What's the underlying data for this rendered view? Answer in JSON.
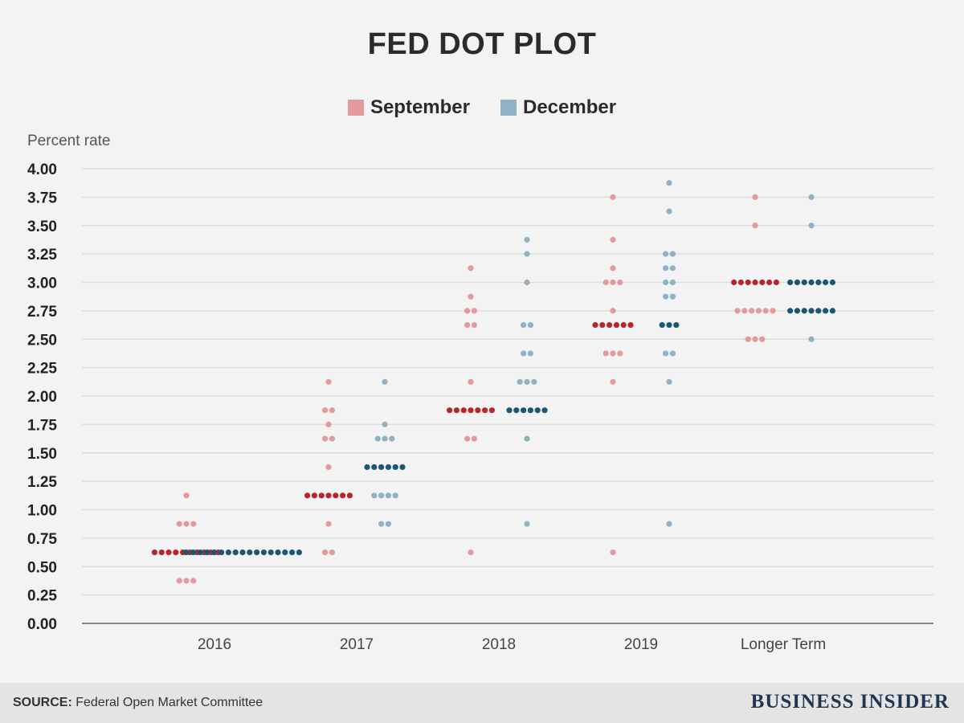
{
  "chart_data": {
    "type": "scatter",
    "subtype": "dot-plot",
    "title": "FED DOT PLOT",
    "ylabel": "Percent rate",
    "xlabel": "",
    "ylim": [
      0,
      4
    ],
    "yticks": [
      "0.00",
      "0.25",
      "0.50",
      "0.75",
      "1.00",
      "1.25",
      "1.50",
      "1.75",
      "2.00",
      "2.25",
      "2.50",
      "2.75",
      "3.00",
      "3.25",
      "3.50",
      "3.75",
      "4.00"
    ],
    "categories": [
      "2016",
      "2017",
      "2018",
      "2019",
      "Longer Term"
    ],
    "legend": [
      {
        "name": "September",
        "color": "#e29a9c"
      },
      {
        "name": "December",
        "color": "#8fb2c4"
      }
    ],
    "series": [
      {
        "name": "September",
        "color_light": "#e29a9c",
        "color_dark": "#b8262d",
        "groups": [
          {
            "category": "2016",
            "rates": [
              {
                "rate": 1.125,
                "count": 1
              },
              {
                "rate": 0.875,
                "count": 3
              },
              {
                "rate": 0.625,
                "count": 10
              },
              {
                "rate": 0.375,
                "count": 3
              }
            ]
          },
          {
            "category": "2017",
            "rates": [
              {
                "rate": 2.125,
                "count": 1
              },
              {
                "rate": 1.875,
                "count": 2
              },
              {
                "rate": 1.75,
                "count": 1
              },
              {
                "rate": 1.625,
                "count": 2
              },
              {
                "rate": 1.375,
                "count": 1
              },
              {
                "rate": 1.125,
                "count": 7
              },
              {
                "rate": 0.875,
                "count": 1
              },
              {
                "rate": 0.625,
                "count": 2
              }
            ]
          },
          {
            "category": "2018",
            "rates": [
              {
                "rate": 3.125,
                "count": 1
              },
              {
                "rate": 2.875,
                "count": 1
              },
              {
                "rate": 2.75,
                "count": 2
              },
              {
                "rate": 2.625,
                "count": 2
              },
              {
                "rate": 2.125,
                "count": 1
              },
              {
                "rate": 1.875,
                "count": 7
              },
              {
                "rate": 1.625,
                "count": 2
              },
              {
                "rate": 0.625,
                "count": 1
              }
            ]
          },
          {
            "category": "2019",
            "rates": [
              {
                "rate": 3.75,
                "count": 1
              },
              {
                "rate": 3.375,
                "count": 1
              },
              {
                "rate": 3.125,
                "count": 1
              },
              {
                "rate": 3.0,
                "count": 3
              },
              {
                "rate": 2.75,
                "count": 1
              },
              {
                "rate": 2.625,
                "count": 6
              },
              {
                "rate": 2.375,
                "count": 3
              },
              {
                "rate": 2.125,
                "count": 1
              },
              {
                "rate": 0.625,
                "count": 1
              }
            ]
          },
          {
            "category": "Longer Term",
            "rates": [
              {
                "rate": 3.75,
                "count": 1
              },
              {
                "rate": 3.5,
                "count": 1
              },
              {
                "rate": 3.0,
                "count": 7
              },
              {
                "rate": 2.75,
                "count": 6
              },
              {
                "rate": 2.5,
                "count": 3
              }
            ]
          }
        ]
      },
      {
        "name": "December",
        "color_light": "#8fb2c4",
        "color_dark": "#1b5673",
        "groups": [
          {
            "category": "2016",
            "rates": [
              {
                "rate": 0.625,
                "count": 17
              }
            ]
          },
          {
            "category": "2017",
            "rates": [
              {
                "rate": 2.125,
                "count": 1
              },
              {
                "rate": 1.75,
                "count": 1
              },
              {
                "rate": 1.625,
                "count": 3
              },
              {
                "rate": 1.375,
                "count": 6
              },
              {
                "rate": 1.125,
                "count": 4
              },
              {
                "rate": 0.875,
                "count": 2
              }
            ]
          },
          {
            "category": "2018",
            "rates": [
              {
                "rate": 3.375,
                "count": 1
              },
              {
                "rate": 3.25,
                "count": 1
              },
              {
                "rate": 3.0,
                "count": 1
              },
              {
                "rate": 2.625,
                "count": 2
              },
              {
                "rate": 2.375,
                "count": 2
              },
              {
                "rate": 2.125,
                "count": 3
              },
              {
                "rate": 1.875,
                "count": 6
              },
              {
                "rate": 1.625,
                "count": 1
              },
              {
                "rate": 0.875,
                "count": 1
              }
            ]
          },
          {
            "category": "2019",
            "rates": [
              {
                "rate": 3.875,
                "count": 1
              },
              {
                "rate": 3.625,
                "count": 1
              },
              {
                "rate": 3.25,
                "count": 2
              },
              {
                "rate": 3.125,
                "count": 2
              },
              {
                "rate": 3.0,
                "count": 2
              },
              {
                "rate": 2.875,
                "count": 2
              },
              {
                "rate": 2.625,
                "count": 3
              },
              {
                "rate": 2.375,
                "count": 2
              },
              {
                "rate": 2.125,
                "count": 1
              },
              {
                "rate": 0.875,
                "count": 1
              }
            ]
          },
          {
            "category": "Longer Term",
            "rates": [
              {
                "rate": 3.75,
                "count": 1
              },
              {
                "rate": 3.5,
                "count": 1
              },
              {
                "rate": 3.0,
                "count": 7
              },
              {
                "rate": 2.75,
                "count": 7
              },
              {
                "rate": 2.5,
                "count": 1
              }
            ]
          }
        ]
      }
    ]
  },
  "footer": {
    "source_label": "SOURCE:",
    "source_text": " Federal Open Market Committee",
    "brand": "BUSINESS INSIDER"
  },
  "colors": {
    "background": "#f3f3f3",
    "grid": "#dddddd",
    "axis": "#888888",
    "footer_bg": "#e4e4e4"
  }
}
